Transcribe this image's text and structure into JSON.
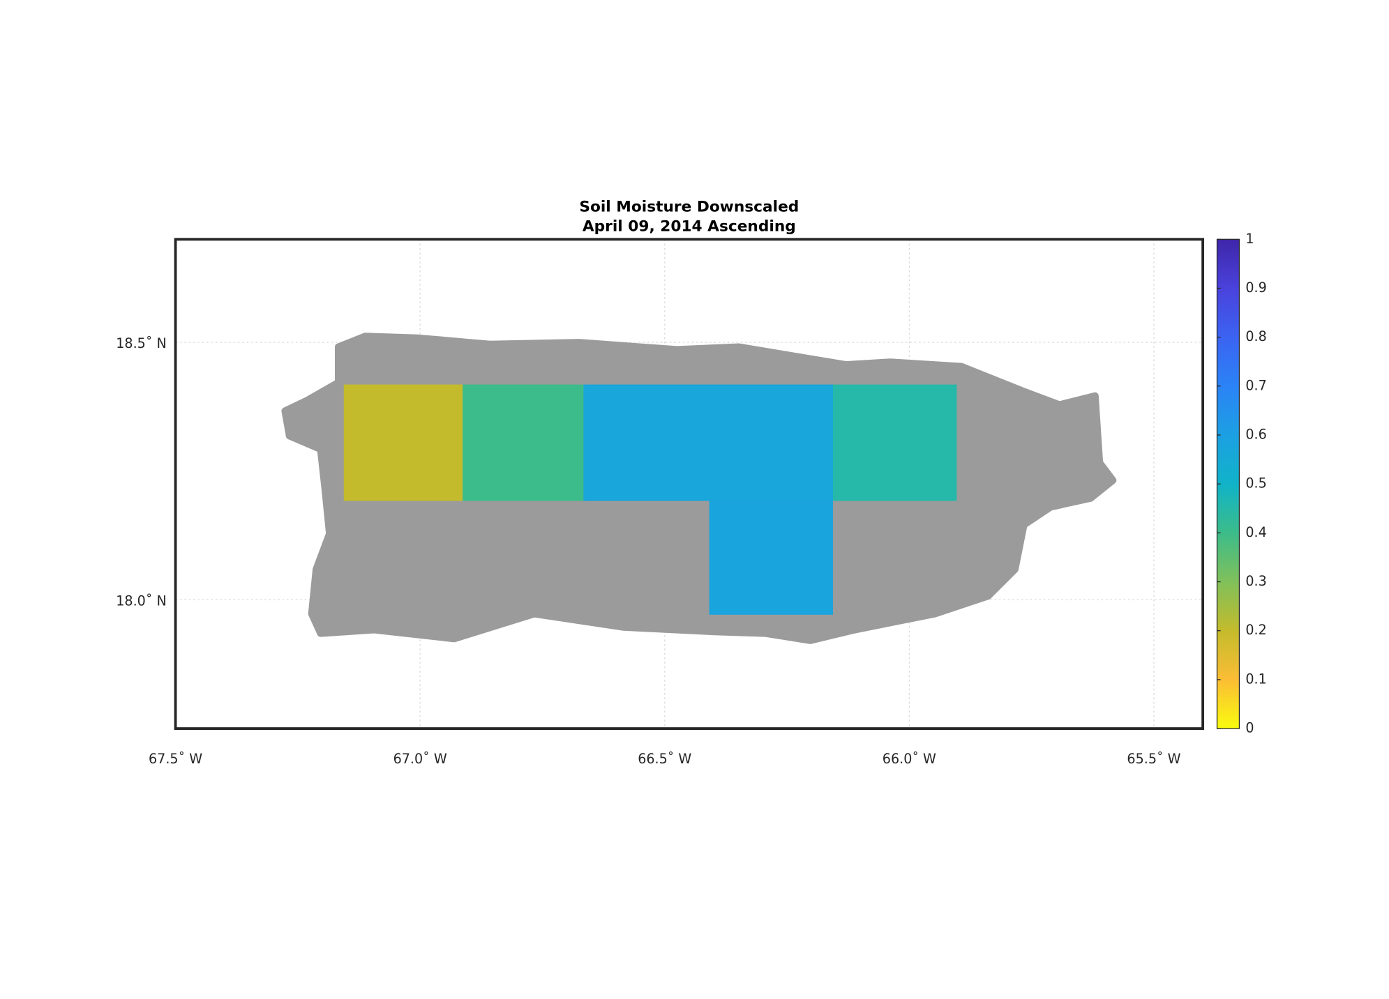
{
  "chart_data": {
    "type": "map",
    "title": "Soil Moisture Downscaled",
    "subtitle": "April 09, 2014 Ascending",
    "xlim": [
      -67.5,
      -65.4
    ],
    "ylim": [
      17.75,
      18.7
    ],
    "xticks": [
      {
        "value": -67.5,
        "label": "67.5˚ W"
      },
      {
        "value": -67.0,
        "label": "67.0˚ W"
      },
      {
        "value": -66.5,
        "label": "66.5˚ W"
      },
      {
        "value": -66.0,
        "label": "66.0˚ W"
      },
      {
        "value": -65.5,
        "label": "65.5˚ W"
      }
    ],
    "yticks": [
      {
        "value": 18.0,
        "label": "18.0˚ N"
      },
      {
        "value": 18.5,
        "label": "18.5˚ N"
      }
    ],
    "grid": true,
    "clim": [
      0,
      1
    ],
    "cticks": [
      0,
      0.1,
      0.2,
      0.3,
      0.4,
      0.5,
      0.6,
      0.7,
      0.8,
      0.9,
      1
    ],
    "colormap": [
      "#f9fb0e",
      "#fbbd35",
      "#c4bb2c",
      "#80c05a",
      "#3cbc8a",
      "#10b3c8",
      "#1ca0e3",
      "#2b83f6",
      "#3b63f2",
      "#4a42dc",
      "#3e26a8"
    ],
    "regions": [
      {
        "lon": [
          -67.156,
          -66.913
        ],
        "lat": [
          18.192,
          18.418
        ],
        "value": 0.2
      },
      {
        "lon": [
          -66.913,
          -66.666
        ],
        "lat": [
          18.192,
          18.418
        ],
        "value": 0.4
      },
      {
        "lon": [
          -66.666,
          -66.156
        ],
        "lat": [
          18.192,
          18.418
        ],
        "value": 0.57
      },
      {
        "lon": [
          -66.156,
          -65.903
        ],
        "lat": [
          18.192,
          18.418
        ],
        "value": 0.45
      },
      {
        "lon": [
          -66.409,
          -66.156
        ],
        "lat": [
          17.971,
          18.192
        ],
        "value": 0.58
      }
    ]
  }
}
